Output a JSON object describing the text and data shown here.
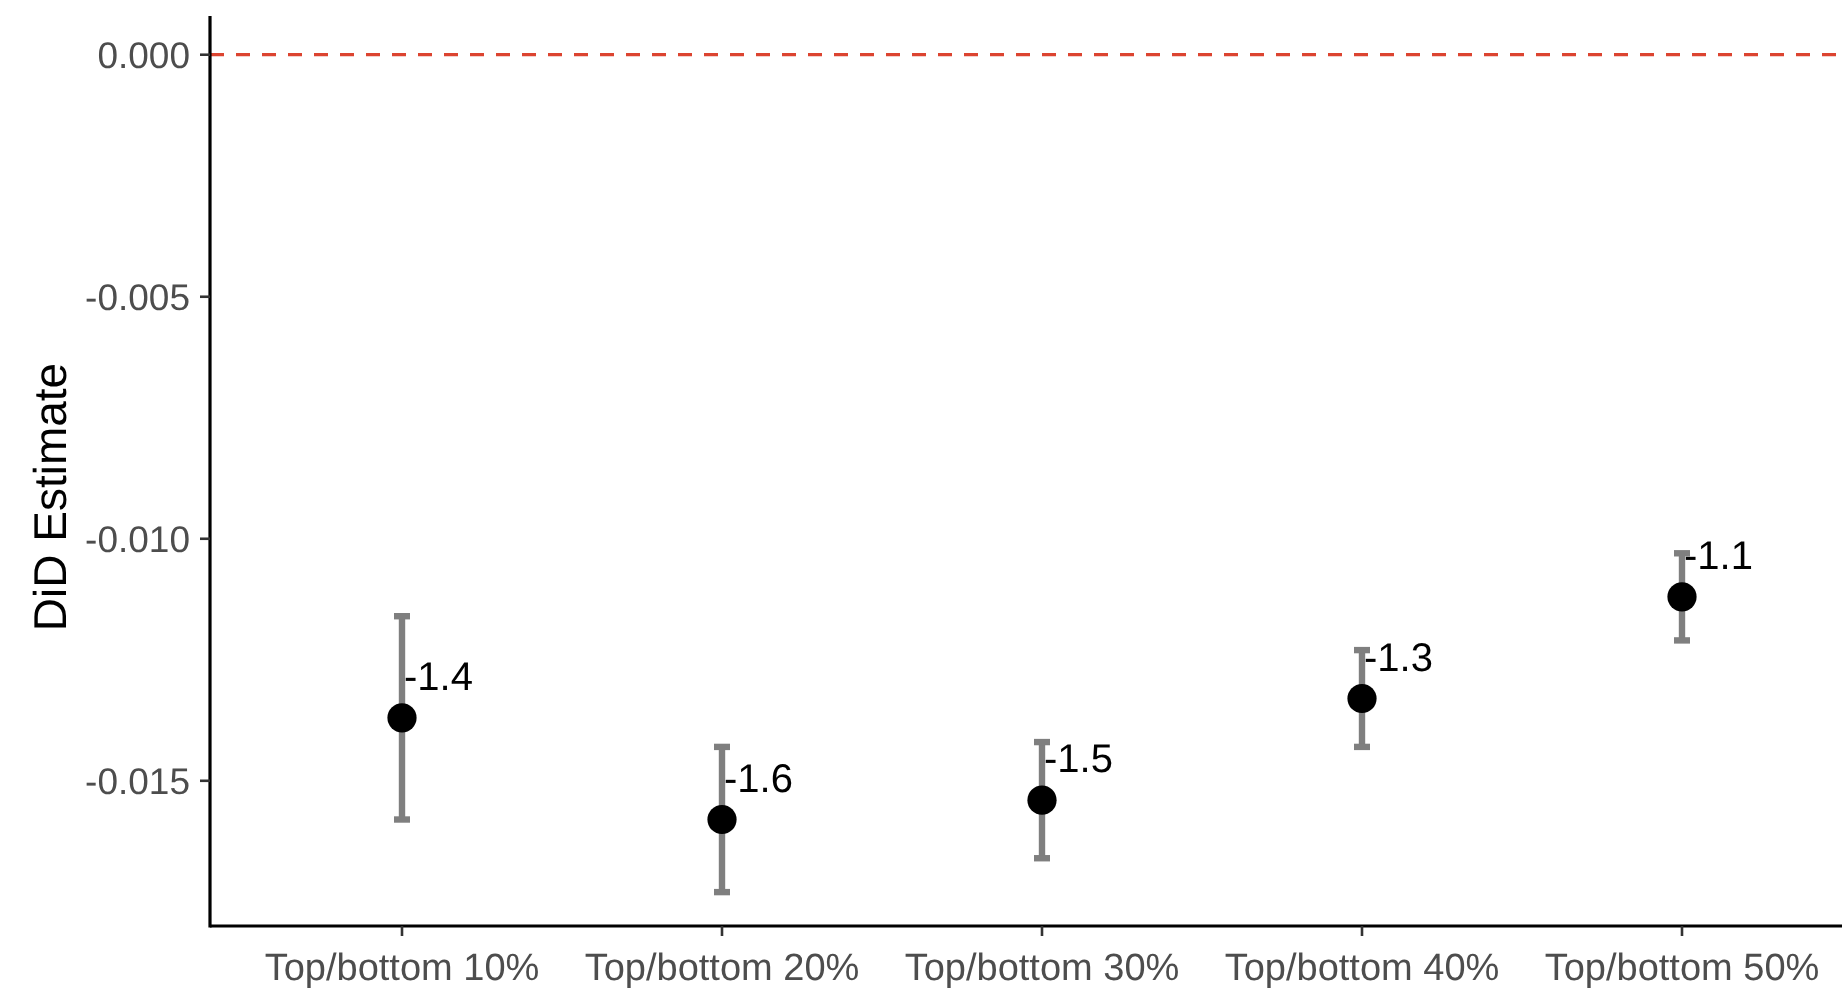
{
  "chart_data": {
    "type": "scatter",
    "ylabel": "DiD Estimate",
    "categories": [
      "Top/bottom 10%",
      "Top/bottom 20%",
      "Top/bottom 30%",
      "Top/bottom 40%",
      "Top/bottom 50%"
    ],
    "series": [
      {
        "color": "#000000",
        "values": [
          -0.0137,
          -0.0158,
          -0.0154,
          -0.0133,
          -0.0112
        ],
        "errors": [
          0.0021,
          0.0015,
          0.0012,
          0.001,
          0.0009
        ]
      }
    ],
    "annotations": [
      {
        "text": "-1.4",
        "x": "Top/bottom 10%",
        "y": -0.0137
      },
      {
        "text": "-1.6",
        "x": "Top/bottom 20%",
        "y": -0.0158
      },
      {
        "text": "-1.5",
        "x": "Top/bottom 30%",
        "y": -0.0154
      },
      {
        "text": "-1.3",
        "x": "Top/bottom 40%",
        "y": -0.0133
      },
      {
        "text": "-1.1",
        "x": "Top/bottom 50%",
        "y": -0.0112
      }
    ],
    "ylim": [
      -0.018,
      0.0008
    ],
    "yticks": [
      {
        "value": 0,
        "label": "0.000"
      },
      -0.005,
      {
        "value": -0.01,
        "label": "-0.010"
      },
      -0.015
    ],
    "ref_lines": [
      {
        "axis": "y",
        "value": 0,
        "color": "#dc4430",
        "line_style": "dashed"
      }
    ],
    "marker": "circle"
  }
}
